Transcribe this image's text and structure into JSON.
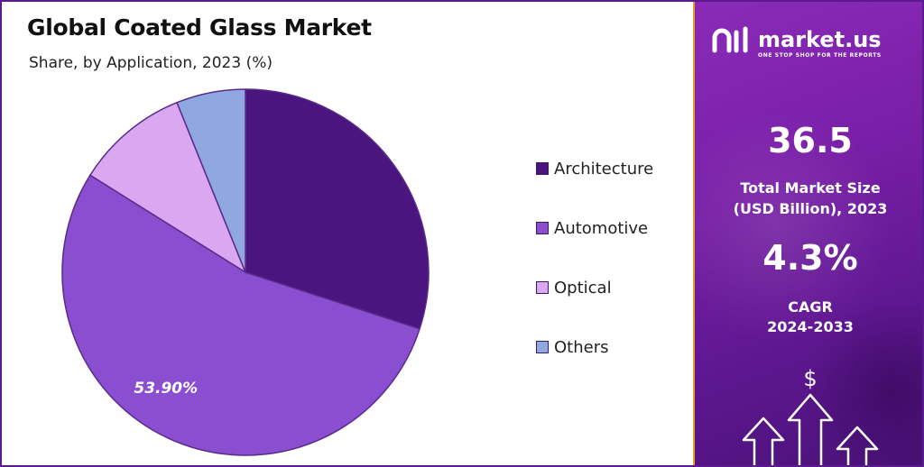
{
  "chart_data": {
    "type": "pie",
    "title": "Global Coated Glass Market",
    "subtitle": "Share, by Application, 2023 (%)",
    "slices": [
      {
        "name": "Architecture",
        "value": 30.0,
        "color": "#4b1580"
      },
      {
        "name": "Automotive",
        "value": 53.9,
        "color": "#8a4fd0"
      },
      {
        "name": "Optical",
        "value": 10.0,
        "color": "#d9a8f0"
      },
      {
        "name": "Others",
        "value": 6.1,
        "color": "#8fa8e0"
      }
    ],
    "data_labels": [
      {
        "slice": "Automotive",
        "text": "53.90%"
      }
    ],
    "legend_position": "right"
  },
  "sidebar": {
    "brand": "market.us",
    "tagline": "ONE STOP SHOP FOR THE REPORTS",
    "market_size_value": "36.5",
    "market_size_label_line1": "Total Market Size",
    "market_size_label_line2": "(USD Billion), 2023",
    "cagr_value": "4.3%",
    "cagr_label_line1": "CAGR",
    "cagr_label_line2": "2024-2033",
    "currency_symbol": "$"
  }
}
